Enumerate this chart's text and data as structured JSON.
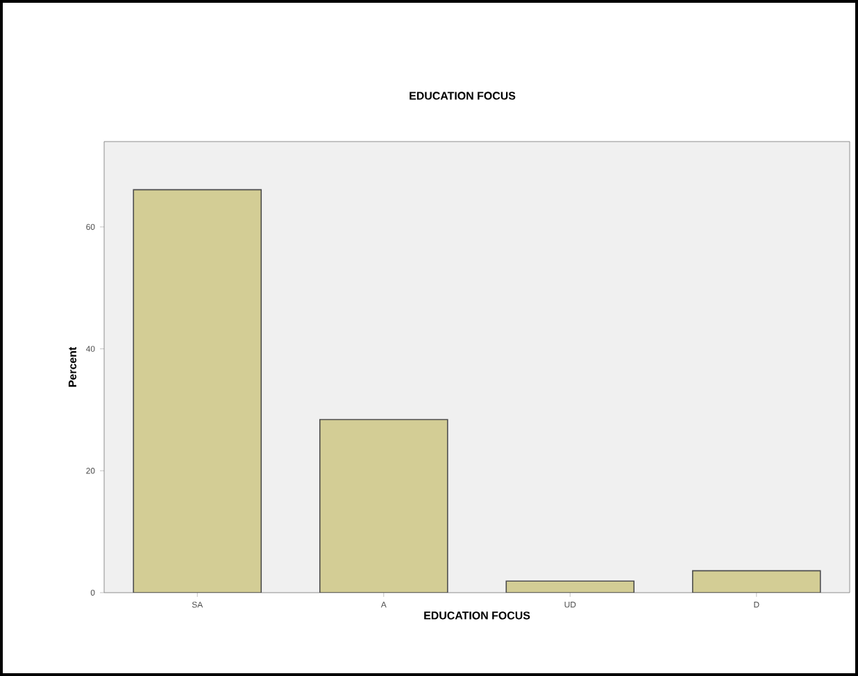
{
  "chart_data": {
    "type": "bar",
    "title": "EDUCATION FOCUS",
    "xlabel": "EDUCATION FOCUS",
    "ylabel": "Percent",
    "categories": [
      "SA",
      "A",
      "UD",
      "D"
    ],
    "values": [
      66.1,
      28.4,
      1.9,
      3.6
    ],
    "color": "#d3cd95",
    "ylim": [
      0,
      74
    ],
    "yticks": [
      0,
      20,
      40,
      60
    ]
  }
}
